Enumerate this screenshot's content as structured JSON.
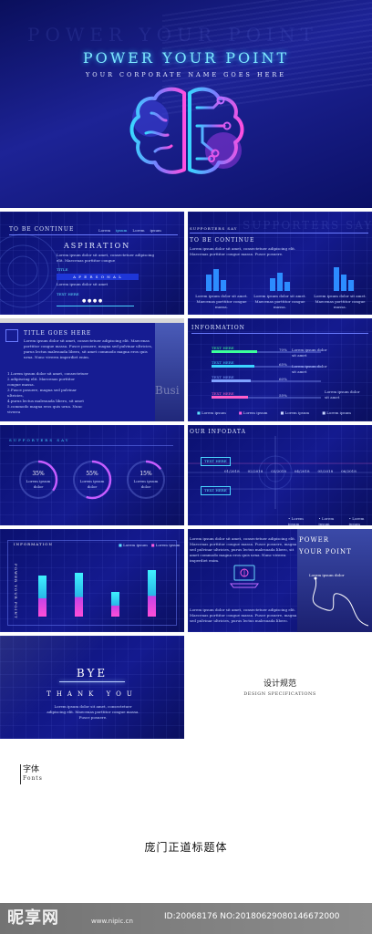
{
  "hero": {
    "ghost": "POWER YOUR POINT",
    "title": "POWER YOUR POINT",
    "subtitle": "YOUR CORPORATE NAME GOES HERE"
  },
  "slide2": {
    "header": "TO BE CONTINUE",
    "tabs": [
      "Lorem",
      "ipsum",
      "Lorem",
      "ipsum"
    ],
    "heading": "ASPIRATION",
    "body": "Lorem ipsum dolor sit amet, consectetuer adipiscing elit. Maecenas porttitor congue",
    "row_label": "TITLE",
    "row_value": "A P E R S O N A L",
    "text_here": "TEXT HERE",
    "body2": "Lorem ipsum dolor sit amet",
    "pager_dots": "● ● ● ●"
  },
  "slide3": {
    "ghost": "SUPPORTERS SAY",
    "header": "SUPPORTERS SAY",
    "heading": "TO BE CONTINUE",
    "body": "Lorem ipsum dolor sit amet, consectetuer adipiscing elit. Maecenas porttitor congue massa. Fusce posuere.",
    "col_text": "Lorem ipsum dolor sit amet. Maecenas porttitor congue massa."
  },
  "slide4": {
    "heading": "TITLE GOES HERE",
    "body": "Lorem ipsum dolor sit amet, consectetuer adipiscing elit. Maecenas porttitor congue massa. Fusce posuere, magna sed pulvinar ultricies, purus lectus malesuada libero, sit amet commodo magna eros quis urna. Nunc viverra imperdiet enim.",
    "list": [
      "1.Lorem ipsum dolor sit amet, consectetuer",
      "2.adipiscing elit. Maecenas porttitor",
      "congue massa.",
      "3.Fusce posuere, magna sed pulvinar",
      "ultricies,",
      "4.purus lectus malesuada libero, sit amet",
      "5.commodo magna eros quis urna. Nunc",
      "viverra"
    ],
    "photo_word": "Busi"
  },
  "slide5": {
    "header": "INFORMATION",
    "rows": [
      {
        "label": "TEXT HERE",
        "pct": "70%",
        "value": 0.7
      },
      {
        "label": "TEXT HERE",
        "pct": "65%",
        "value": 0.65
      },
      {
        "label": "TEXT HERE",
        "pct": "60%",
        "value": 0.6
      },
      {
        "label": "TEXT HERE",
        "pct": "55%",
        "value": 0.55
      }
    ],
    "right_text": "Lorem ipsum dolor sit amet",
    "legend": [
      "Lorem ipsum",
      "Lorem ipsum",
      "Lorem ipsum",
      "Lorem ipsum"
    ]
  },
  "slide6": {
    "header": "SUPPORTERS SAY",
    "rings": [
      {
        "pct": "35%",
        "value": 0.35,
        "label": "Lorem ipsum dolor"
      },
      {
        "pct": "55%",
        "value": 0.55,
        "label": "Lorem ipsum dolor"
      },
      {
        "pct": "15%",
        "value": 0.15,
        "label": "Lorem ipsum dolor"
      }
    ]
  },
  "slide7": {
    "header": "OUR INFODATA",
    "labels": [
      "TEXT HERE",
      "TEXT HERE"
    ],
    "dates": [
      "01/2018",
      "02/2018",
      "03/2018",
      "04/2018",
      "05/2018",
      "06/2018"
    ],
    "legend": [
      "Lorem ipsum",
      "Lorem ipsum",
      "Lorem ipsum"
    ]
  },
  "slide8": {
    "header": "INFORMATION",
    "side": "POWER YOUR POINT",
    "legend": [
      "Lorem ipsum",
      "Lorem ipsum"
    ],
    "bars": [
      0.75,
      0.8,
      0.45,
      0.85
    ]
  },
  "slide9": {
    "body": "Lorem ipsum dolor sit amet, consectetuer adipiscing elit. Maecenas porttitor congue massa. Fusce posuere, magna sed pulvinar ultricies, purus lectus malesuada libero, sit amet commodo magna eros quis urna. Nunc viverra imperdiet enim.",
    "body2": "Lorem ipsum dolor sit amet, consectetuer adipiscing elit. Maecenas porttitor congue massa. Fusce posuere, magna sed pulvinar ultricies, purus lectus malesuada libero.",
    "title": "POWER YOUR POINT",
    "caption": "Lorem ipsum dolor"
  },
  "slide10": {
    "title": "BYE",
    "subtitle": "THANK YOU",
    "body": "Lorem ipsum dolor sit amet, consectetuer adipiscing elit. Maecenas porttitor congue massa. Fusce posuere."
  },
  "design": {
    "title_cn": "设计规范",
    "title_en": "DESIGN SPECIFICATIONS"
  },
  "fonts": {
    "label_cn": "字体",
    "label_en": "Fonts",
    "font_name": "庞门正道标题体"
  },
  "watermark": {
    "logo": "昵享网",
    "url": "www.nipic.cn",
    "id": "ID:20068176 NO:20180629080146672000"
  },
  "colors": {
    "accent_cyan": "#5fe3ff",
    "accent_pink": "#ff5ee0",
    "bg_navy": "#12188a"
  }
}
